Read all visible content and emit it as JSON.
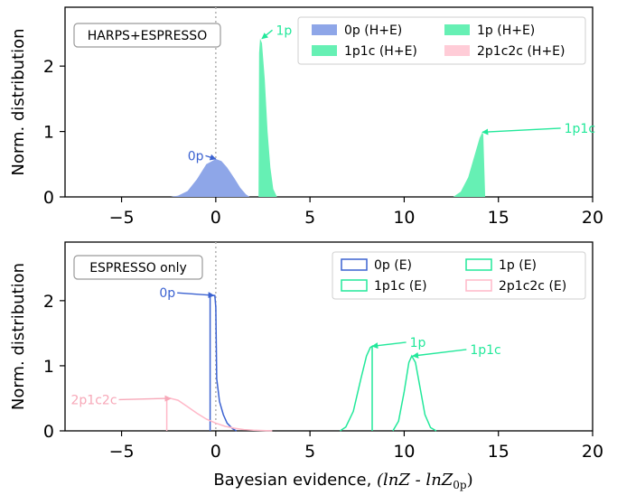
{
  "chart_data": [
    {
      "type": "area",
      "panel": "top",
      "ylabel": "Norm. distribution",
      "box_label": "HARPS+ESPRESSO",
      "xlim": [
        -8,
        20
      ],
      "ylim": [
        0,
        2.9
      ],
      "xticks": [
        -5,
        0,
        5,
        10,
        15,
        20
      ],
      "yticks": [
        0,
        1,
        2
      ],
      "grid": false,
      "legend_position": "top-right",
      "reference_line_x": 0,
      "series": [
        {
          "name": "0p (H+E)",
          "color": "#8ea6e8",
          "style": "filled",
          "x": [
            -2.4,
            -2.0,
            -1.5,
            -1.0,
            -0.5,
            0.0,
            0.3,
            0.6,
            1.0,
            1.3,
            1.6,
            1.8
          ],
          "y": [
            0.0,
            0.02,
            0.09,
            0.27,
            0.5,
            0.58,
            0.55,
            0.45,
            0.28,
            0.14,
            0.04,
            0.0
          ]
        },
        {
          "name": "1p (H+E)",
          "color": "#66f0b4",
          "style": "filled",
          "x": [
            2.27,
            2.3,
            2.35,
            2.45,
            2.6,
            2.75,
            2.9,
            3.05,
            3.25
          ],
          "y": [
            0.0,
            2.2,
            2.42,
            2.35,
            1.8,
            1.0,
            0.45,
            0.12,
            0.0
          ]
        },
        {
          "name": "1p1c (H+E)",
          "color": "#66f0b4",
          "style": "filled",
          "x": [
            12.6,
            13.0,
            13.4,
            13.8,
            14.0,
            14.15,
            14.2,
            14.3
          ],
          "y": [
            0.0,
            0.08,
            0.3,
            0.7,
            0.9,
            0.99,
            0.95,
            0.0
          ]
        },
        {
          "name": "2p1c2c (H+E)",
          "color": "#ffccd7",
          "style": "filled",
          "x": [],
          "y": []
        }
      ],
      "annotations": [
        {
          "text": "0p",
          "color": "#3b62d1",
          "x": -1.6,
          "y": 0.63,
          "point": [
            0.0,
            0.58
          ]
        },
        {
          "text": "1p",
          "color": "#22e89a",
          "x": 3.1,
          "y": 2.55,
          "point": [
            2.45,
            2.42
          ]
        },
        {
          "text": "1p1c",
          "color": "#22e89a",
          "x": 18.4,
          "y": 1.05,
          "point": [
            14.15,
            0.99
          ]
        }
      ]
    },
    {
      "type": "line",
      "panel": "bottom",
      "ylabel": "Norm. distribution",
      "xlabel_prefix": "Bayesian evidence, ",
      "xlabel_math": "(lnZ - lnZ",
      "xlabel_sub": "0p",
      "xlabel_close": ")",
      "box_label": "ESPRESSO only",
      "xlim": [
        -8,
        20
      ],
      "ylim": [
        0,
        2.9
      ],
      "xticks": [
        -5,
        0,
        5,
        10,
        15,
        20
      ],
      "yticks": [
        0,
        1,
        2
      ],
      "grid": false,
      "legend_position": "top-right",
      "reference_line_x": 0,
      "series": [
        {
          "name": "0p (E)",
          "color": "#3b62d1",
          "style": "step",
          "x": [
            -0.3,
            -0.3,
            -0.05,
            0.0,
            0.05,
            0.2,
            0.4,
            0.6,
            0.9,
            1.1
          ],
          "y": [
            0.0,
            2.08,
            2.08,
            1.9,
            0.8,
            0.45,
            0.25,
            0.12,
            0.03,
            0.0
          ]
        },
        {
          "name": "1p (E)",
          "color": "#22e89a",
          "style": "step",
          "x": [
            6.6,
            6.9,
            7.3,
            7.7,
            8.0,
            8.2,
            8.3,
            8.3
          ],
          "y": [
            0.0,
            0.06,
            0.3,
            0.8,
            1.15,
            1.28,
            1.3,
            0.0
          ]
        },
        {
          "name": "1p1c (E)",
          "color": "#22e89a",
          "style": "step",
          "x": [
            9.4,
            9.7,
            10.0,
            10.25,
            10.4,
            10.6,
            10.85,
            11.1,
            11.4,
            11.7
          ],
          "y": [
            0.0,
            0.15,
            0.6,
            1.05,
            1.15,
            1.05,
            0.65,
            0.25,
            0.05,
            0.0
          ]
        },
        {
          "name": "2p1c2c (E)",
          "color": "#ffb8c8",
          "style": "step",
          "x": [
            -2.6,
            -2.6,
            -2.4,
            -2.0,
            -1.5,
            -1.0,
            -0.5,
            0.0,
            0.5,
            1.0,
            1.5,
            2.0,
            2.5,
            3.0
          ],
          "y": [
            0.0,
            0.47,
            0.5,
            0.47,
            0.37,
            0.27,
            0.18,
            0.12,
            0.07,
            0.04,
            0.02,
            0.01,
            0.005,
            0.0
          ]
        }
      ],
      "annotations": [
        {
          "text": "0p",
          "color": "#3b62d1",
          "x": -3.1,
          "y": 2.12,
          "point": [
            -0.1,
            2.08
          ]
        },
        {
          "text": "1p",
          "color": "#22e89a",
          "x": 10.2,
          "y": 1.36,
          "point": [
            8.3,
            1.3
          ]
        },
        {
          "text": "1p1c",
          "color": "#22e89a",
          "x": 13.4,
          "y": 1.25,
          "point": [
            10.45,
            1.15
          ]
        },
        {
          "text": "2p1c2c",
          "color": "#f7a8b8",
          "x": -6.2,
          "y": 0.48,
          "point": [
            -2.4,
            0.5
          ]
        }
      ]
    }
  ]
}
